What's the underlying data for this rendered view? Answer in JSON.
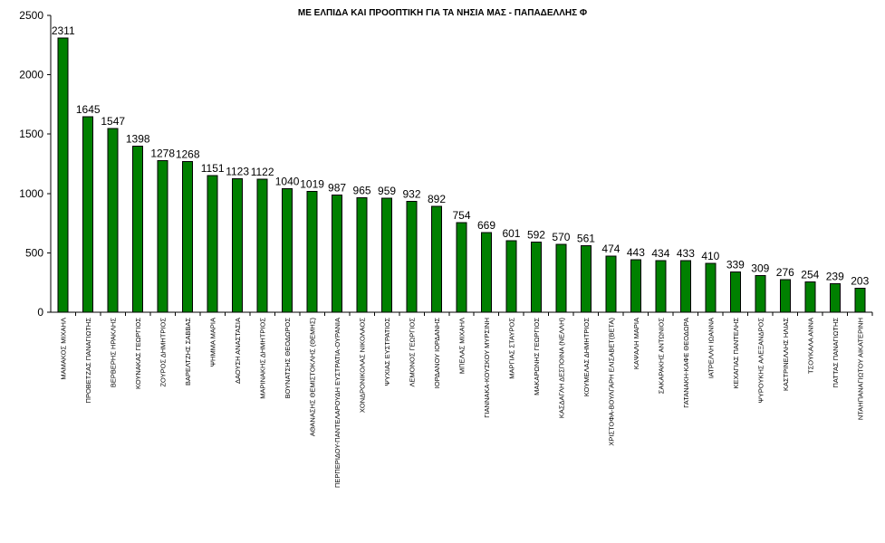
{
  "chart_data": {
    "type": "bar",
    "title": "ΜΕ ΕΛΠΙΔΑ ΚΑΙ ΠΡΟΟΠΤΙΚΗ ΓΙΑ ΤΑ ΝΗΣΙΑ ΜΑΣ - ΠΑΠΑΔΕΛΛΗΣ Φ",
    "xlabel": "",
    "ylabel": "",
    "ylim": [
      0,
      2500
    ],
    "yticks": [
      "0",
      "500",
      "1000",
      "1500",
      "2000",
      "2500"
    ],
    "grid": false,
    "bar_color": "#008000",
    "categories": [
      "ΜΑΜΑΚΟΣ ΜΙΧΑΗΛ",
      "ΠΡΟΒΕΤΖΑΣ ΠΑΝΑΓΙΩΤΗΣ",
      "ΒΕΡΒΕΡΗΣ ΗΡΑΚΛΗΣ",
      "ΚΟΥΝΑΚΑΣ ΓΕΩΡΓΙΟΣ",
      "ΖΟΥΡΟΣ ΔΗΜΗΤΡΙΟΣ",
      "ΒΑΡΕΛΤΖΗΣ ΣΑΒΒΑΣ",
      "ΨΗΜΜΑ ΜΑΡΙΑ",
      "ΔΑΟΥΣΗ ΑΝΑΣΤΑΣΙΑ",
      "ΜΑΡΙΝΑΚΗΣ ΔΗΜΗΤΡΙΟΣ",
      "ΒΟΥΝΑΤΣΗΣ ΘΕΟΔΩΡΟΣ",
      "ΑΘΑΝΑΣΗΣ ΘΕΜΙΣΤΟΚΛΗΣ (ΘΕΜΗΣ)",
      "ΠΕΡΠΕΡΙΔΟΥ-ΠΑΝΤΕΛΑΡΟΥΔΗ ΕΥΣΤΡΑΤΙΑ-ΟΥΡΑΝΙΑ",
      "ΧΟΝΔΡΟΝΙΚΟΛΑΣ ΝΙΚΟΛΑΟΣ",
      "ΨΥΧΙΑΣ ΕΥΣΤΡΑΤΙΟΣ",
      "ΛΕΜΟΝΟΣ ΓΕΩΡΓΙΟΣ",
      "ΙΟΡΔΑΝΟΥ ΙΟΡΔΑΝΗΣ",
      "ΜΠΕΛΑΣ ΜΙΧΑΗΛ",
      "ΓΙΑΝΝΑΚΑ-ΚΟΥΣΚΟΥ ΜΥΡΣΙΝΗ",
      "ΜΑΡΓΙΑΣ ΣΤΑΥΡΟΣ",
      "ΜΑΚΑΡΩΝΗΣ ΓΕΩΡΓΙΟΣ",
      "ΚΑΣΔΑΓΛΗ ΔΕΣΠΟΙΝΑ (ΝΕΛΛΗ)",
      "ΚΟΥΜΕΛΑΣ ΔΗΜΗΤΡΙΟΣ",
      "ΧΡΙΣΤΟΦΑ-ΒΟΥΛΓΑΡΗ ΕΛΙΣΑΒΕΤ(ΒΕΤΑ)",
      "ΚΑΨΑΛΗ ΜΑΡΙΑ",
      "ΣΑΚΑΡΑΚΗΣ ΑΝΤΩΝΙΟΣ",
      "ΓΑΤΑΝΑΚΗ-ΚΑΦΕ ΘΕΟΔΩΡΑ",
      "ΙΑΤΡΕΛΛΗ ΙΩΑΝΝΑ",
      "ΚΕΧΑΓΙΑΣ ΠΑΝΤΕΛΗΣ",
      "ΨΥΡΟΥΚΗΣ ΑΛΕΞΑΝΔΡΟΣ",
      "ΚΑΣΤΡΙΝΕΛΛΗΣ ΗΛΙΑΣ",
      "ΤΣΟΥΚΑΛΑ ΑΝΝΑ",
      "ΠΑΤΤΑΣ ΠΑΝΑΓΙΩΤΗΣ",
      "ΝΤΑΗΠΑΝΑΓΙΩΤΟΥ ΑΙΚΑΤΕΡΙΝΗ"
    ],
    "values": [
      2311,
      1645,
      1547,
      1398,
      1278,
      1268,
      1151,
      1123,
      1122,
      1040,
      1019,
      987,
      965,
      959,
      932,
      892,
      754,
      669,
      601,
      592,
      570,
      561,
      474,
      443,
      434,
      433,
      410,
      339,
      309,
      276,
      254,
      239,
      203
    ]
  }
}
